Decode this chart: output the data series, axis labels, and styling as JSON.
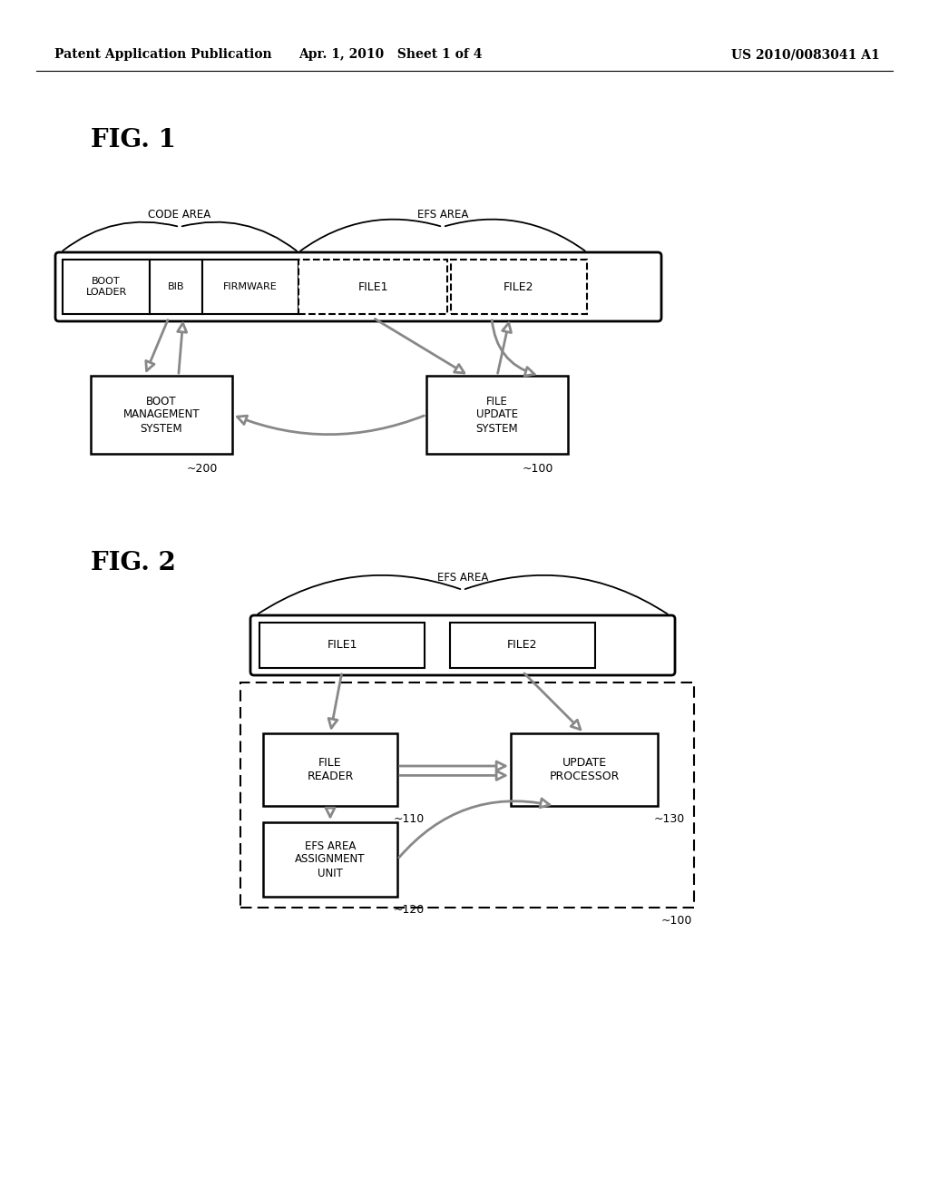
{
  "bg_color": "#ffffff",
  "header_left": "Patent Application Publication",
  "header_mid": "Apr. 1, 2010   Sheet 1 of 4",
  "header_right": "US 2010/0083041 A1",
  "fig1_label": "FIG. 1",
  "fig2_label": "FIG. 2",
  "code_area_label": "CODE AREA",
  "efs_area_label1": "EFS AREA",
  "efs_area_label2": "EFS AREA"
}
